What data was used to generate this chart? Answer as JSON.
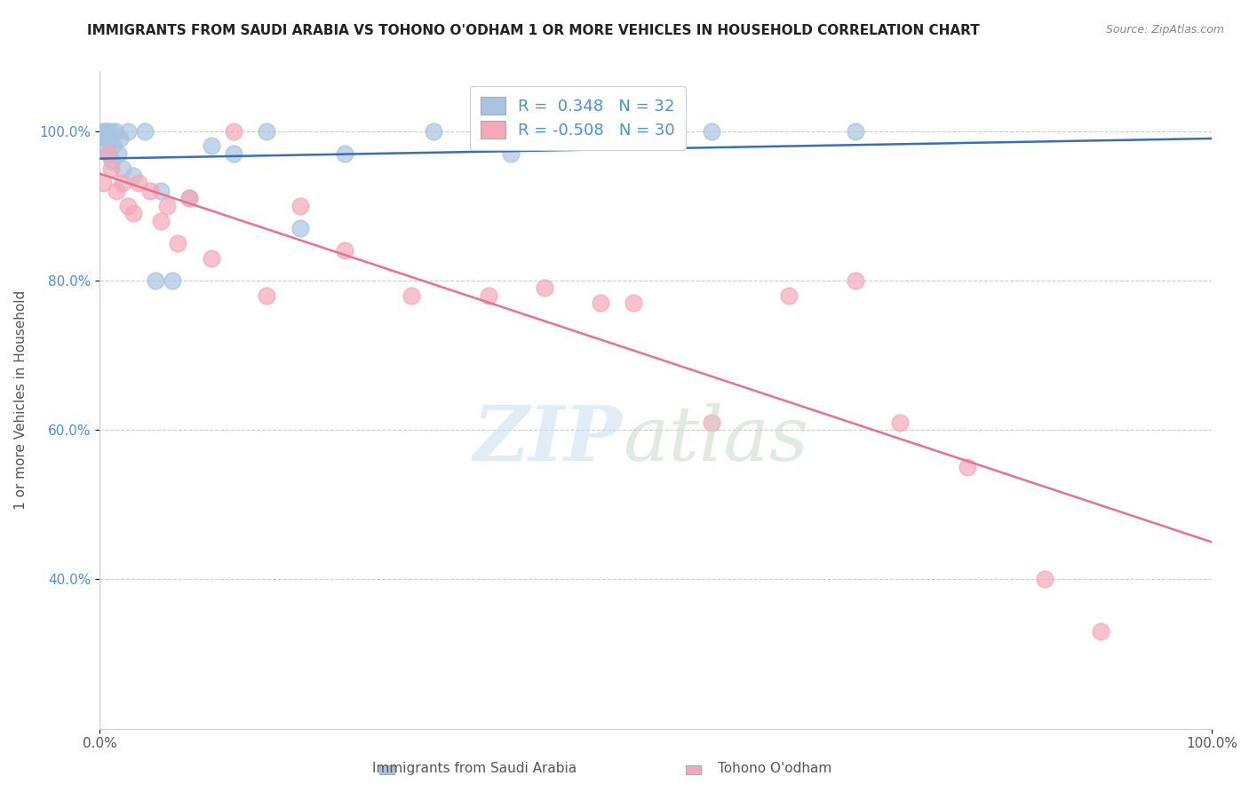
{
  "title": "IMMIGRANTS FROM SAUDI ARABIA VS TOHONO O'ODHAM 1 OR MORE VEHICLES IN HOUSEHOLD CORRELATION CHART",
  "source": "Source: ZipAtlas.com",
  "ylabel": "1 or more Vehicles in Household",
  "xlim": [
    0.0,
    100.0
  ],
  "ylim": [
    20.0,
    108.0
  ],
  "yticks": [
    40.0,
    60.0,
    80.0,
    100.0
  ],
  "ytick_labels": [
    "40.0%",
    "60.0%",
    "80.0%",
    "100.0%"
  ],
  "legend_labels": [
    "Immigrants from Saudi Arabia",
    "Tohono O'odham"
  ],
  "R_blue": 0.348,
  "N_blue": 32,
  "R_pink": -0.508,
  "N_pink": 30,
  "blue_color": "#a8c4e0",
  "pink_color": "#f4a8b8",
  "blue_line_color": "#3a6faf",
  "pink_line_color": "#e87090",
  "blue_scatter_x": [
    0.1,
    0.2,
    0.3,
    0.4,
    0.5,
    0.6,
    0.7,
    0.8,
    0.9,
    1.0,
    1.1,
    1.2,
    1.4,
    1.6,
    1.8,
    2.0,
    2.5,
    3.0,
    4.0,
    5.0,
    5.5,
    6.5,
    8.0,
    10.0,
    12.0,
    15.0,
    18.0,
    22.0,
    30.0,
    37.0,
    55.0,
    68.0
  ],
  "blue_scatter_y": [
    99.5,
    100.0,
    98.0,
    100.0,
    99.0,
    100.0,
    100.0,
    97.0,
    99.0,
    100.0,
    96.0,
    98.0,
    100.0,
    97.0,
    99.0,
    95.0,
    100.0,
    94.0,
    100.0,
    80.0,
    92.0,
    80.0,
    91.0,
    98.0,
    97.0,
    100.0,
    87.0,
    97.0,
    100.0,
    97.0,
    100.0,
    100.0
  ],
  "pink_scatter_x": [
    0.3,
    0.8,
    1.0,
    1.5,
    2.0,
    2.5,
    3.0,
    3.5,
    4.5,
    5.5,
    6.0,
    7.0,
    8.0,
    10.0,
    12.0,
    15.0,
    18.0,
    22.0,
    28.0,
    35.0,
    40.0,
    45.0,
    48.0,
    55.0,
    62.0,
    68.0,
    72.0,
    78.0,
    85.0,
    90.0
  ],
  "pink_scatter_y": [
    93.0,
    97.0,
    95.0,
    92.0,
    93.0,
    90.0,
    89.0,
    93.0,
    92.0,
    88.0,
    90.0,
    85.0,
    91.0,
    83.0,
    100.0,
    78.0,
    90.0,
    84.0,
    78.0,
    78.0,
    79.0,
    77.0,
    77.0,
    61.0,
    78.0,
    80.0,
    61.0,
    55.0,
    40.0,
    33.0
  ]
}
